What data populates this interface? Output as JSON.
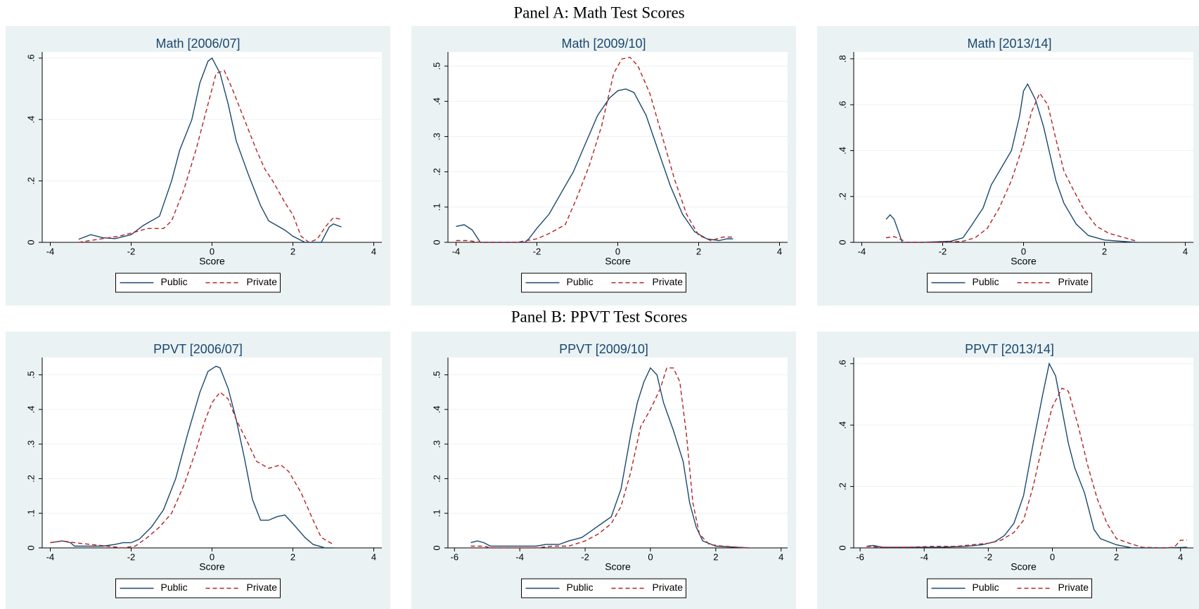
{
  "panels": [
    {
      "title": "Panel A: Math Test Scores"
    },
    {
      "title": "Panel B: PPVT Test Scores"
    }
  ],
  "chart_data": [
    {
      "type": "line",
      "title": "Math [2006/07]",
      "x_label": "Score",
      "xlim": [
        -4.2,
        4.2
      ],
      "ylim": [
        0,
        0.62
      ],
      "xticks": [
        -4,
        -2,
        0,
        2,
        4
      ],
      "yticks": [
        0,
        {
          "value": 0.2,
          "label": ".2"
        },
        {
          "value": 0.4,
          "label": ".4"
        },
        {
          "value": 0.6,
          "label": ".6"
        }
      ],
      "grid": true,
      "legend": "bottom",
      "series": [
        {
          "name": "Public",
          "color": "#1a476f",
          "dash": "solid",
          "x": [
            -3.3,
            -3,
            -2.7,
            -2.4,
            -2,
            -1.7,
            -1.3,
            -1,
            -0.8,
            -0.5,
            -0.3,
            -0.1,
            0,
            0.2,
            0.4,
            0.6,
            0.9,
            1.2,
            1.4,
            1.8,
            2,
            2.3,
            2.7,
            2.9,
            3,
            3.2
          ],
          "values": [
            0.01,
            0.025,
            0.015,
            0.012,
            0.025,
            0.055,
            0.085,
            0.2,
            0.3,
            0.4,
            0.52,
            0.59,
            0.6,
            0.55,
            0.45,
            0.33,
            0.22,
            0.12,
            0.07,
            0.04,
            0.02,
            0,
            0,
            0.05,
            0.06,
            0.05
          ]
        },
        {
          "name": "Private",
          "color": "#b22222",
          "dash": "dashed",
          "x": [
            -3.3,
            -2.8,
            -2.3,
            -2,
            -1.6,
            -1.2,
            -1,
            -0.7,
            -0.4,
            -0.1,
            0.1,
            0.3,
            0.5,
            0.8,
            1.1,
            1.3,
            1.5,
            1.8,
            2,
            2.2,
            2.4,
            2.6,
            2.8,
            3,
            3.2
          ],
          "values": [
            0,
            0.01,
            0.02,
            0.03,
            0.045,
            0.045,
            0.07,
            0.17,
            0.3,
            0.45,
            0.55,
            0.56,
            0.5,
            0.4,
            0.3,
            0.24,
            0.2,
            0.13,
            0.09,
            0.02,
            0,
            0.01,
            0.05,
            0.08,
            0.075
          ]
        }
      ]
    },
    {
      "type": "line",
      "title": "Math [2009/10]",
      "x_label": "Score",
      "xlim": [
        -4.2,
        4.2
      ],
      "ylim": [
        0,
        0.54
      ],
      "xticks": [
        -4,
        -2,
        0,
        2,
        4
      ],
      "yticks": [
        0,
        {
          "value": 0.1,
          "label": ".1"
        },
        {
          "value": 0.2,
          "label": ".2"
        },
        {
          "value": 0.3,
          "label": ".3"
        },
        {
          "value": 0.4,
          "label": ".4"
        },
        {
          "value": 0.5,
          "label": ".5"
        }
      ],
      "grid": true,
      "legend": "bottom",
      "series": [
        {
          "name": "Public",
          "color": "#1a476f",
          "dash": "solid",
          "x": [
            -4,
            -3.8,
            -3.6,
            -3.4,
            -3,
            -2.3,
            -2.2,
            -2,
            -1.7,
            -1.4,
            -1.1,
            -0.8,
            -0.5,
            -0.2,
            0,
            0.2,
            0.4,
            0.7,
            1,
            1.3,
            1.6,
            1.9,
            2.2,
            2.5,
            2.7,
            2.85
          ],
          "values": [
            0.045,
            0.05,
            0.035,
            0,
            0,
            0,
            0.01,
            0.04,
            0.08,
            0.14,
            0.2,
            0.28,
            0.36,
            0.41,
            0.43,
            0.435,
            0.425,
            0.36,
            0.26,
            0.16,
            0.08,
            0.03,
            0.01,
            0.005,
            0.01,
            0.01
          ]
        },
        {
          "name": "Private",
          "color": "#b22222",
          "dash": "dashed",
          "x": [
            -4,
            -3.7,
            -3.4,
            -2.5,
            -2,
            -1.7,
            -1.3,
            -1,
            -0.7,
            -0.4,
            -0.1,
            0.1,
            0.3,
            0.5,
            0.8,
            1.1,
            1.4,
            1.7,
            2,
            2.3,
            2.6,
            2.85
          ],
          "values": [
            0.005,
            0.005,
            0,
            0,
            0.01,
            0.025,
            0.05,
            0.13,
            0.22,
            0.33,
            0.48,
            0.52,
            0.525,
            0.5,
            0.42,
            0.3,
            0.18,
            0.08,
            0.02,
            0.005,
            0.015,
            0.015
          ]
        }
      ]
    },
    {
      "type": "line",
      "title": "Math [2013/14]",
      "x_label": "Score",
      "xlim": [
        -4.2,
        4.2
      ],
      "ylim": [
        0,
        0.83
      ],
      "xticks": [
        -4,
        -2,
        0,
        2,
        4
      ],
      "yticks": [
        0,
        {
          "value": 0.2,
          "label": ".2"
        },
        {
          "value": 0.4,
          "label": ".4"
        },
        {
          "value": 0.6,
          "label": ".6"
        },
        {
          "value": 0.8,
          "label": ".8"
        }
      ],
      "grid": true,
      "legend": "bottom",
      "series": [
        {
          "name": "Public",
          "color": "#1a476f",
          "dash": "solid",
          "x": [
            -3.4,
            -3.3,
            -3.2,
            -3.1,
            -3,
            -2.5,
            -1.8,
            -1.5,
            -1.3,
            -1,
            -0.8,
            -0.5,
            -0.3,
            -0.1,
            0,
            0.1,
            0.3,
            0.5,
            0.8,
            1,
            1.3,
            1.6,
            2,
            2.4,
            2.8
          ],
          "values": [
            0.1,
            0.12,
            0.1,
            0.05,
            0,
            0,
            0.005,
            0.02,
            0.07,
            0.15,
            0.25,
            0.34,
            0.4,
            0.55,
            0.66,
            0.69,
            0.62,
            0.5,
            0.27,
            0.17,
            0.08,
            0.03,
            0.01,
            0.005,
            0
          ]
        },
        {
          "name": "Private",
          "color": "#b22222",
          "dash": "dashed",
          "x": [
            -3.4,
            -3.2,
            -3,
            -2.9,
            -2,
            -1.5,
            -1.2,
            -0.9,
            -0.6,
            -0.3,
            0,
            0.2,
            0.4,
            0.6,
            0.8,
            1,
            1.2,
            1.5,
            1.8,
            2.1,
            2.5,
            2.8
          ],
          "values": [
            0.02,
            0.025,
            0.01,
            0,
            0,
            0.005,
            0.02,
            0.06,
            0.15,
            0.27,
            0.43,
            0.57,
            0.65,
            0.6,
            0.45,
            0.31,
            0.24,
            0.14,
            0.07,
            0.04,
            0.02,
            0.005
          ]
        }
      ]
    },
    {
      "type": "line",
      "title": "PPVT [2006/07]",
      "x_label": "Score",
      "xlim": [
        -4.2,
        4.2
      ],
      "ylim": [
        0,
        0.55
      ],
      "xticks": [
        -4,
        -2,
        0,
        2,
        4
      ],
      "yticks": [
        0,
        {
          "value": 0.1,
          "label": ".1"
        },
        {
          "value": 0.2,
          "label": ".2"
        },
        {
          "value": 0.3,
          "label": ".3"
        },
        {
          "value": 0.4,
          "label": ".4"
        },
        {
          "value": 0.5,
          "label": ".5"
        }
      ],
      "grid": true,
      "legend": "bottom",
      "series": [
        {
          "name": "Public",
          "color": "#1a476f",
          "dash": "solid",
          "x": [
            -4,
            -3.7,
            -3.5,
            -3.4,
            -3,
            -2.7,
            -2.4,
            -2.2,
            -2,
            -1.8,
            -1.5,
            -1.2,
            -0.9,
            -0.6,
            -0.3,
            -0.1,
            0.1,
            0.2,
            0.4,
            0.6,
            0.8,
            1,
            1.2,
            1.4,
            1.6,
            1.8,
            2,
            2.3,
            2.5,
            2.8,
            3
          ],
          "values": [
            0.015,
            0.02,
            0.015,
            0.005,
            0.005,
            0.005,
            0.01,
            0.015,
            0.015,
            0.025,
            0.06,
            0.11,
            0.2,
            0.33,
            0.45,
            0.51,
            0.525,
            0.52,
            0.46,
            0.37,
            0.26,
            0.14,
            0.08,
            0.08,
            0.09,
            0.095,
            0.07,
            0.03,
            0.01,
            0,
            0
          ]
        },
        {
          "name": "Private",
          "color": "#b22222",
          "dash": "dashed",
          "x": [
            -4,
            -3.7,
            -3.4,
            -3,
            -2.6,
            -2.2,
            -1.9,
            -1.6,
            -1.3,
            -1,
            -0.7,
            -0.4,
            -0.2,
            0,
            0.2,
            0.4,
            0.6,
            0.9,
            1.1,
            1.4,
            1.7,
            1.9,
            2.2,
            2.5,
            2.7,
            3
          ],
          "values": [
            0.015,
            0.02,
            0.015,
            0.01,
            0.005,
            0,
            0.005,
            0.03,
            0.06,
            0.1,
            0.18,
            0.28,
            0.36,
            0.42,
            0.45,
            0.43,
            0.37,
            0.3,
            0.25,
            0.23,
            0.24,
            0.22,
            0.16,
            0.08,
            0.03,
            0.01
          ]
        }
      ]
    },
    {
      "type": "line",
      "title": "PPVT [2009/10]",
      "x_label": "Score",
      "xlim": [
        -6.2,
        4.2
      ],
      "ylim": [
        0,
        0.55
      ],
      "xticks": [
        -6,
        -4,
        -2,
        0,
        2,
        4
      ],
      "yticks": [
        0,
        {
          "value": 0.1,
          "label": ".1"
        },
        {
          "value": 0.2,
          "label": ".2"
        },
        {
          "value": 0.3,
          "label": ".3"
        },
        {
          "value": 0.4,
          "label": ".4"
        },
        {
          "value": 0.5,
          "label": ".5"
        }
      ],
      "grid": true,
      "legend": "bottom",
      "series": [
        {
          "name": "Public",
          "color": "#1a476f",
          "dash": "solid",
          "x": [
            -5.5,
            -5.3,
            -5.1,
            -4.9,
            -4,
            -3.5,
            -3.2,
            -2.8,
            -2.5,
            -2.1,
            -1.8,
            -1.5,
            -1.2,
            -0.9,
            -0.6,
            -0.4,
            -0.2,
            0,
            0.2,
            0.4,
            0.7,
            1,
            1.2,
            1.4,
            1.6,
            2,
            3
          ],
          "values": [
            0.015,
            0.02,
            0.015,
            0.005,
            0.005,
            0.005,
            0.01,
            0.01,
            0.02,
            0.03,
            0.05,
            0.07,
            0.09,
            0.17,
            0.33,
            0.42,
            0.48,
            0.52,
            0.5,
            0.42,
            0.34,
            0.25,
            0.13,
            0.06,
            0.02,
            0.005,
            0
          ]
        },
        {
          "name": "Private",
          "color": "#b22222",
          "dash": "dashed",
          "x": [
            -5.5,
            -5.1,
            -4.9,
            -4,
            -3.5,
            -3,
            -2.5,
            -2,
            -1.6,
            -1.2,
            -0.9,
            -0.6,
            -0.3,
            0,
            0.3,
            0.5,
            0.7,
            0.9,
            1.1,
            1.3,
            1.5,
            1.8,
            2.2,
            3
          ],
          "values": [
            0.005,
            0.005,
            0,
            0,
            0,
            0.005,
            0.005,
            0.02,
            0.04,
            0.07,
            0.12,
            0.22,
            0.35,
            0.4,
            0.46,
            0.52,
            0.52,
            0.48,
            0.33,
            0.13,
            0.04,
            0.01,
            0.005,
            0
          ]
        }
      ]
    },
    {
      "type": "line",
      "title": "PPVT [2013/14]",
      "x_label": "Score",
      "xlim": [
        -6.2,
        4.4
      ],
      "ylim": [
        0,
        0.62
      ],
      "xticks": [
        -6,
        -4,
        -2,
        0,
        2,
        4
      ],
      "yticks": [
        0,
        {
          "value": 0.2,
          "label": ".2"
        },
        {
          "value": 0.4,
          "label": ".4"
        },
        {
          "value": 0.6,
          "label": ".6"
        }
      ],
      "grid": true,
      "legend": "bottom",
      "series": [
        {
          "name": "Public",
          "color": "#1a476f",
          "dash": "solid",
          "x": [
            -5.8,
            -5.6,
            -5.3,
            -4.5,
            -3.5,
            -2.7,
            -2.2,
            -1.8,
            -1.5,
            -1.2,
            -0.9,
            -0.6,
            -0.3,
            -0.1,
            0.1,
            0.3,
            0.5,
            0.7,
            1,
            1.3,
            1.5,
            2,
            2.5,
            3.5,
            4.2
          ],
          "values": [
            0.005,
            0.008,
            0.002,
            0.002,
            0.002,
            0.005,
            0.01,
            0.02,
            0.04,
            0.08,
            0.17,
            0.34,
            0.5,
            0.6,
            0.56,
            0.45,
            0.34,
            0.26,
            0.18,
            0.06,
            0.03,
            0.01,
            0,
            0,
            0.002
          ]
        },
        {
          "name": "Private",
          "color": "#b22222",
          "dash": "dashed",
          "x": [
            -5.8,
            -5.3,
            -4.5,
            -3.7,
            -3,
            -2.5,
            -2,
            -1.6,
            -1.2,
            -0.9,
            -0.6,
            -0.3,
            0,
            0.3,
            0.5,
            0.8,
            1.1,
            1.4,
            1.7,
            2,
            2.4,
            2.8,
            3.5,
            3.8,
            4,
            4.2
          ],
          "values": [
            0.005,
            0.002,
            0.002,
            0.005,
            0.005,
            0.01,
            0.015,
            0.025,
            0.05,
            0.09,
            0.2,
            0.34,
            0.46,
            0.52,
            0.51,
            0.4,
            0.27,
            0.16,
            0.08,
            0.03,
            0.015,
            0.002,
            0,
            0.002,
            0.025,
            0.025
          ]
        }
      ]
    }
  ]
}
